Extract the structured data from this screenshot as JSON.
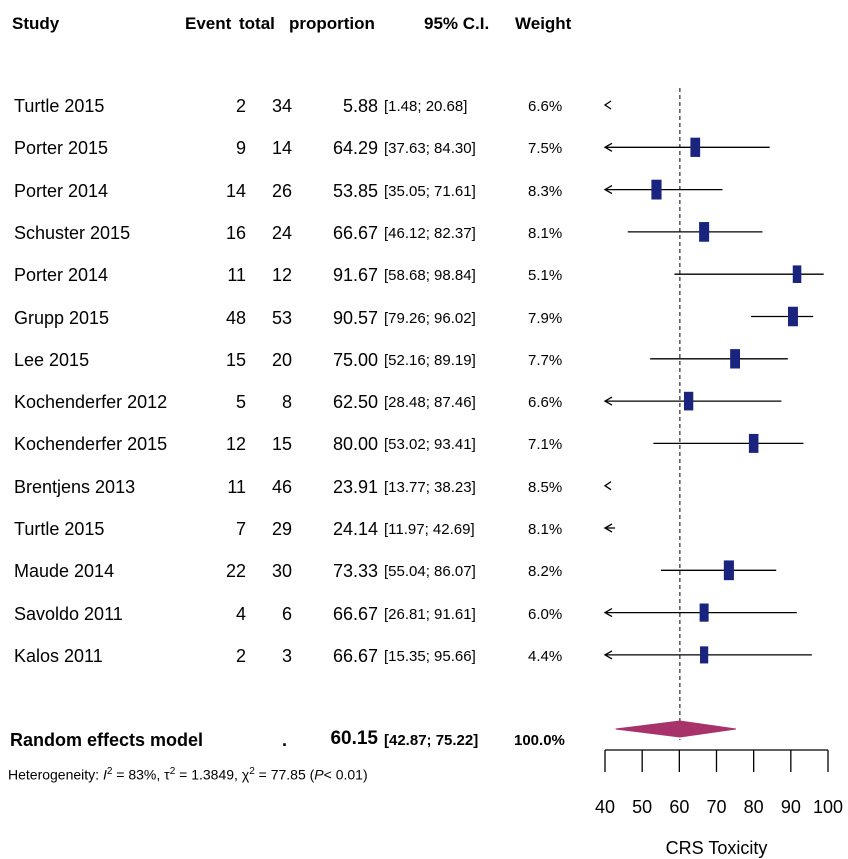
{
  "headers": {
    "study": "Study",
    "event": "Event",
    "total": "total",
    "proportion": "proportion",
    "ci": "95% C.I.",
    "weight": "Weight"
  },
  "chart_data": {
    "type": "forest",
    "xlabel": "CRS Toxicity",
    "xlim": [
      40,
      100
    ],
    "xticks": [
      "40",
      "50",
      "60",
      "70",
      "80",
      "90",
      "100"
    ],
    "reference_line": 60.15,
    "studies": [
      {
        "study": "Turtle 2015",
        "event": "2",
        "total": "34",
        "proportion": "5.88",
        "ci": "[1.48; 20.68]",
        "weight": "6.6%",
        "est": 5.88,
        "lo": 1.48,
        "hi": 20.68
      },
      {
        "study": "Porter 2015",
        "event": "9",
        "total": "14",
        "proportion": "64.29",
        "ci": "[37.63; 84.30]",
        "weight": "7.5%",
        "est": 64.29,
        "lo": 37.63,
        "hi": 84.3
      },
      {
        "study": "Porter 2014",
        "event": "14",
        "total": "26",
        "proportion": "53.85",
        "ci": "[35.05; 71.61]",
        "weight": "8.3%",
        "est": 53.85,
        "lo": 35.05,
        "hi": 71.61
      },
      {
        "study": "Schuster 2015",
        "event": "16",
        "total": "24",
        "proportion": "66.67",
        "ci": "[46.12; 82.37]",
        "weight": "8.1%",
        "est": 66.67,
        "lo": 46.12,
        "hi": 82.37
      },
      {
        "study": "Porter 2014",
        "event": "11",
        "total": "12",
        "proportion": "91.67",
        "ci": "[58.68; 98.84]",
        "weight": "5.1%",
        "est": 91.67,
        "lo": 58.68,
        "hi": 98.84
      },
      {
        "study": "Grupp 2015",
        "event": "48",
        "total": "53",
        "proportion": "90.57",
        "ci": "[79.26; 96.02]",
        "weight": "7.9%",
        "est": 90.57,
        "lo": 79.26,
        "hi": 96.02
      },
      {
        "study": "Lee 2015",
        "event": "15",
        "total": "20",
        "proportion": "75.00",
        "ci": "[52.16; 89.19]",
        "weight": "7.7%",
        "est": 75.0,
        "lo": 52.16,
        "hi": 89.19
      },
      {
        "study": "Kochenderfer 2012",
        "event": "5",
        "total": "8",
        "proportion": "62.50",
        "ci": "[28.48; 87.46]",
        "weight": "6.6%",
        "est": 62.5,
        "lo": 28.48,
        "hi": 87.46
      },
      {
        "study": "Kochenderfer 2015",
        "event": "12",
        "total": "15",
        "proportion": "80.00",
        "ci": "[53.02; 93.41]",
        "weight": "7.1%",
        "est": 80.0,
        "lo": 53.02,
        "hi": 93.41
      },
      {
        "study": "Brentjens 2013",
        "event": "11",
        "total": "46",
        "proportion": "23.91",
        "ci": "[13.77; 38.23]",
        "weight": "8.5%",
        "est": 23.91,
        "lo": 13.77,
        "hi": 38.23
      },
      {
        "study": "Turtle 2015",
        "event": "7",
        "total": "29",
        "proportion": "24.14",
        "ci": "[11.97; 42.69]",
        "weight": "8.1%",
        "est": 24.14,
        "lo": 11.97,
        "hi": 42.69
      },
      {
        "study": "Maude 2014",
        "event": "22",
        "total": "30",
        "proportion": "73.33",
        "ci": "[55.04; 86.07]",
        "weight": "8.2%",
        "est": 73.33,
        "lo": 55.04,
        "hi": 86.07
      },
      {
        "study": "Savoldo 2011",
        "event": "4",
        "total": "6",
        "proportion": "66.67",
        "ci": "[26.81; 91.61]",
        "weight": "6.0%",
        "est": 66.67,
        "lo": 26.81,
        "hi": 91.61
      },
      {
        "study": "Kalos 2011",
        "event": "2",
        "total": "3",
        "proportion": "66.67",
        "ci": "[15.35; 95.66]",
        "weight": "4.4%",
        "est": 66.67,
        "lo": 15.35,
        "hi": 95.66
      }
    ],
    "summary": {
      "label": "Random effects model",
      "event": ".",
      "proportion": "60.15",
      "ci": "[42.87; 75.22]",
      "weight": "100.0%",
      "est": 60.15,
      "lo": 42.87,
      "hi": 75.22
    },
    "heterogeneity": {
      "prefix": "Heterogeneity: ",
      "i2_symbol": "I",
      "i2_value": " = 83%, ",
      "tau_symbol": "τ",
      "tau_value": " = 1.3849, ",
      "chi_symbol": "χ",
      "chi_value": " = 77.85 (",
      "p_symbol": "P",
      "p_value": "< 0.01)",
      "sup": "2"
    },
    "colors": {
      "box": "#1a237e",
      "diamond": "#a8326a",
      "line": "#000000"
    }
  }
}
